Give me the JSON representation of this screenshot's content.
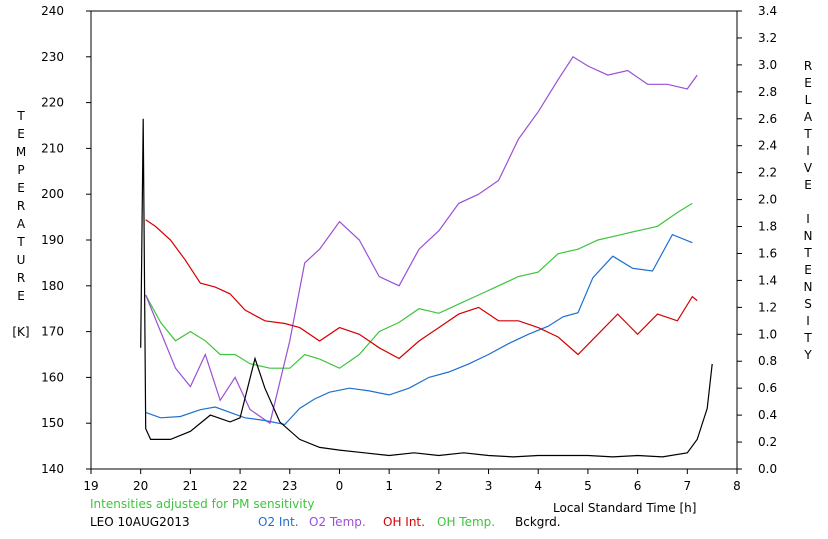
{
  "chart_data": {
    "type": "line",
    "title": "",
    "note": "Intensities adjusted for PM sensitivity",
    "station_label": "LEO 10AUG2013",
    "xlabel": "Local Standard Time [h]",
    "ylabel_left": [
      "T",
      "E",
      "M",
      "P",
      "E",
      "R",
      "A",
      "T",
      "U",
      "R",
      "E",
      "",
      "[K]"
    ],
    "ylabel_right": [
      "R",
      "E",
      "L",
      "A",
      "T",
      "I",
      "V",
      "E",
      "",
      "I",
      "N",
      "T",
      "E",
      "N",
      "S",
      "I",
      "T",
      "Y"
    ],
    "x_ticks": [
      19,
      20,
      21,
      22,
      23,
      0,
      1,
      2,
      3,
      4,
      5,
      6,
      7,
      8
    ],
    "xlim": [
      19,
      32
    ],
    "y_left_ticks": [
      140,
      150,
      160,
      170,
      180,
      190,
      200,
      210,
      220,
      230,
      240
    ],
    "ylim_left": [
      140,
      240
    ],
    "y_right_ticks": [
      "0.0",
      "0.2",
      "0.4",
      "0.6",
      "0.8",
      "1.0",
      "1.2",
      "1.4",
      "1.6",
      "1.8",
      "2.0",
      "2.2",
      "2.4",
      "2.6",
      "2.8",
      "3.0",
      "3.2",
      "3.4"
    ],
    "ylim_right": [
      0,
      3.4
    ],
    "grid": false,
    "colors": {
      "o2_int": "#1f6fd0",
      "o2_temp": "#9b4fd6",
      "oh_int": "#d40000",
      "oh_temp": "#3ec43e",
      "bckgrd": "#000000",
      "note": "#3ec43e"
    },
    "series": [
      {
        "name": "O2 Int.",
        "axis": "right",
        "x": [
          20.1,
          20.4,
          20.8,
          21.2,
          21.5,
          21.8,
          22.1,
          22.5,
          22.9,
          23.2,
          23.5,
          23.8,
          24.2,
          24.6,
          25.0,
          25.4,
          25.8,
          26.2,
          26.6,
          27.0,
          27.4,
          27.8,
          28.2,
          28.5,
          28.8,
          29.1,
          29.5,
          29.9,
          30.3,
          30.7,
          31.1
        ],
        "y": [
          0.42,
          0.38,
          0.39,
          0.44,
          0.46,
          0.42,
          0.38,
          0.36,
          0.33,
          0.45,
          0.52,
          0.57,
          0.6,
          0.58,
          0.55,
          0.6,
          0.68,
          0.72,
          0.78,
          0.85,
          0.93,
          1.0,
          1.06,
          1.13,
          1.16,
          1.42,
          1.58,
          1.49,
          1.47,
          1.74,
          1.68
        ]
      },
      {
        "name": "O2 Temp.",
        "axis": "left",
        "x": [
          20.1,
          20.4,
          20.7,
          21.0,
          21.3,
          21.6,
          21.9,
          22.2,
          22.6,
          23.0,
          23.3,
          23.6,
          24.0,
          24.4,
          24.8,
          25.2,
          25.6,
          26.0,
          26.4,
          26.8,
          27.2,
          27.6,
          28.0,
          28.4,
          28.7,
          29.0,
          29.4,
          29.8,
          30.2,
          30.6,
          31.0,
          31.2
        ],
        "y": [
          178,
          170,
          162,
          158,
          165,
          155,
          160,
          153,
          150,
          168,
          185,
          188,
          194,
          190,
          182,
          180,
          188,
          192,
          198,
          200,
          203,
          212,
          218,
          225,
          230,
          228,
          226,
          227,
          224,
          224,
          223,
          226
        ]
      },
      {
        "name": "OH Int.",
        "axis": "right",
        "x": [
          20.1,
          20.3,
          20.6,
          20.9,
          21.2,
          21.5,
          21.8,
          22.1,
          22.5,
          22.9,
          23.2,
          23.6,
          24.0,
          24.4,
          24.8,
          25.2,
          25.6,
          26.0,
          26.4,
          26.8,
          27.2,
          27.6,
          28.0,
          28.4,
          28.8,
          29.2,
          29.6,
          30.0,
          30.4,
          30.8,
          31.1,
          31.2
        ],
        "y": [
          1.85,
          1.8,
          1.7,
          1.55,
          1.38,
          1.35,
          1.3,
          1.18,
          1.1,
          1.08,
          1.05,
          0.95,
          1.05,
          1.0,
          0.9,
          0.82,
          0.95,
          1.05,
          1.15,
          1.2,
          1.1,
          1.1,
          1.05,
          0.98,
          0.85,
          1.0,
          1.15,
          1.0,
          1.15,
          1.1,
          1.28,
          1.25
        ]
      },
      {
        "name": "OH Temp.",
        "axis": "left",
        "x": [
          20.1,
          20.4,
          20.7,
          21.0,
          21.3,
          21.6,
          21.9,
          22.2,
          22.6,
          23.0,
          23.3,
          23.6,
          24.0,
          24.4,
          24.8,
          25.2,
          25.6,
          26.0,
          26.4,
          26.8,
          27.2,
          27.6,
          28.0,
          28.4,
          28.8,
          29.2,
          29.6,
          30.0,
          30.4,
          30.8,
          31.1
        ],
        "y": [
          178,
          172,
          168,
          170,
          168,
          165,
          165,
          163,
          162,
          162,
          165,
          164,
          162,
          165,
          170,
          172,
          175,
          174,
          176,
          178,
          180,
          182,
          183,
          187,
          188,
          190,
          191,
          192,
          193,
          196,
          198
        ]
      },
      {
        "name": "Bckgrd.",
        "axis": "right",
        "x": [
          20.0,
          20.05,
          20.1,
          20.2,
          20.6,
          21.0,
          21.4,
          21.8,
          22.0,
          22.3,
          22.5,
          22.8,
          23.2,
          23.6,
          24.0,
          24.5,
          25.0,
          25.5,
          26.0,
          26.5,
          27.0,
          27.5,
          28.0,
          28.5,
          29.0,
          29.5,
          30.0,
          30.5,
          31.0,
          31.2,
          31.4,
          31.5
        ],
        "y": [
          0.9,
          2.6,
          0.3,
          0.22,
          0.22,
          0.28,
          0.4,
          0.35,
          0.38,
          0.82,
          0.6,
          0.35,
          0.22,
          0.16,
          0.14,
          0.12,
          0.1,
          0.12,
          0.1,
          0.12,
          0.1,
          0.09,
          0.1,
          0.1,
          0.1,
          0.09,
          0.1,
          0.09,
          0.12,
          0.22,
          0.45,
          0.78
        ]
      }
    ]
  }
}
